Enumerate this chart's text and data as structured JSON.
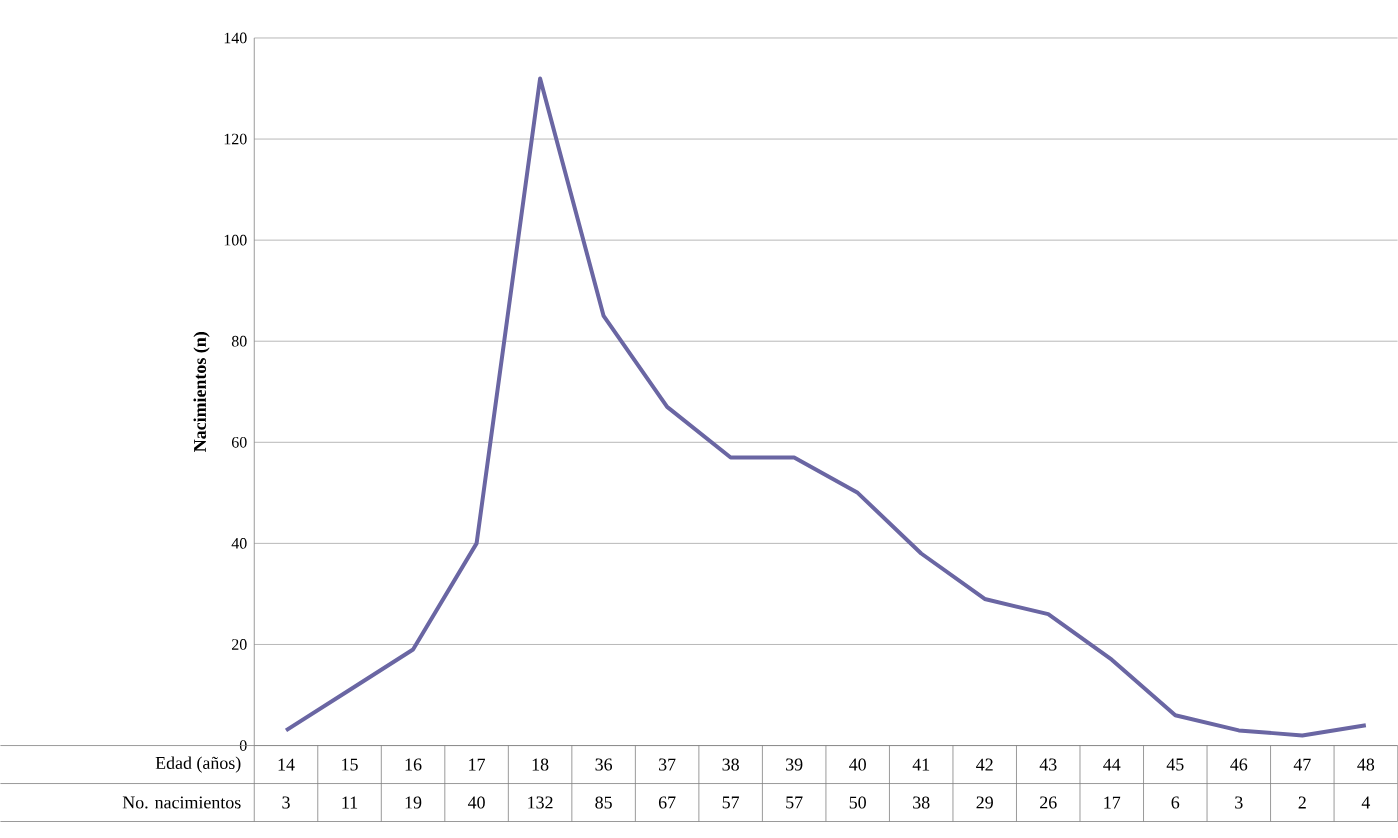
{
  "chart_data": {
    "type": "line",
    "ylabel": "Nacimientos (n)",
    "xlabel": "Edad (años)",
    "categories": [
      "14",
      "15",
      "16",
      "17",
      "18",
      "36",
      "37",
      "38",
      "39",
      "40",
      "41",
      "42",
      "43",
      "44",
      "45",
      "46",
      "47",
      "48"
    ],
    "values": [
      3,
      11,
      19,
      40,
      132,
      85,
      67,
      57,
      57,
      50,
      38,
      29,
      26,
      17,
      6,
      3,
      2,
      4
    ],
    "color": "#6a66a3",
    "ylim": [
      0,
      140
    ],
    "yticks": [
      0,
      20,
      40,
      60,
      80,
      100,
      120,
      140
    ],
    "grid": "y",
    "data_labels": true,
    "annotations": [
      "No. nacimientos"
    ]
  }
}
